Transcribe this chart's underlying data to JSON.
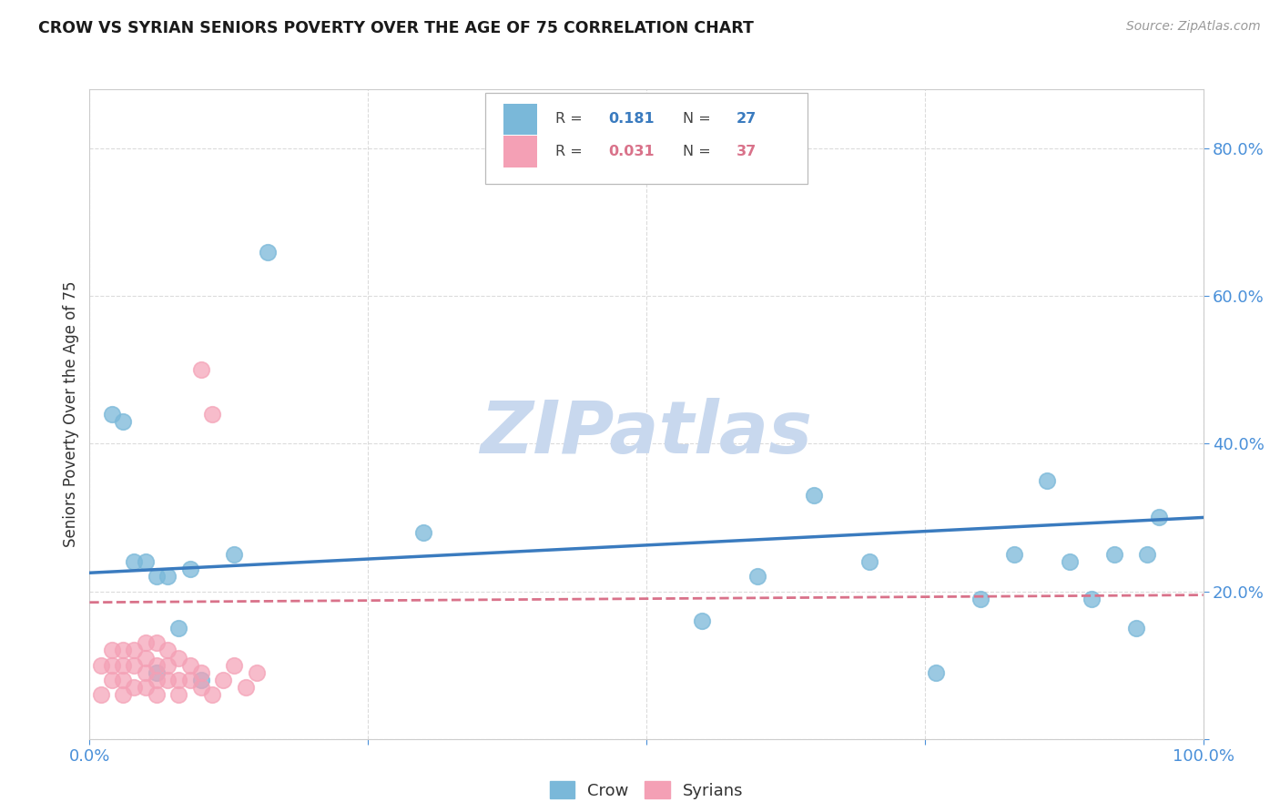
{
  "title": "CROW VS SYRIAN SENIORS POVERTY OVER THE AGE OF 75 CORRELATION CHART",
  "source": "Source: ZipAtlas.com",
  "ylabel": "Seniors Poverty Over the Age of 75",
  "crow_R": 0.181,
  "crow_N": 27,
  "syrian_R": 0.031,
  "syrian_N": 37,
  "crow_color": "#7ab8d9",
  "syrian_color": "#f4a0b5",
  "crow_line_color": "#3a7bbf",
  "syrian_line_color": "#d9728a",
  "bg_color": "#ffffff",
  "watermark_text": "ZIPatlas",
  "watermark_color": "#c8d8ee",
  "xlim": [
    0.0,
    1.0
  ],
  "ylim": [
    0.0,
    0.88
  ],
  "axis_color": "#4a90d9",
  "grid_color": "#d8d8d8",
  "title_color": "#1a1a1a",
  "source_color": "#999999",
  "crow_x": [
    0.02,
    0.03,
    0.04,
    0.05,
    0.06,
    0.06,
    0.07,
    0.08,
    0.09,
    0.1,
    0.13,
    0.16,
    0.3,
    0.55,
    0.6,
    0.65,
    0.7,
    0.76,
    0.8,
    0.83,
    0.86,
    0.88,
    0.9,
    0.92,
    0.94,
    0.95,
    0.96
  ],
  "crow_y": [
    0.44,
    0.43,
    0.24,
    0.24,
    0.22,
    0.09,
    0.22,
    0.15,
    0.23,
    0.08,
    0.25,
    0.66,
    0.28,
    0.16,
    0.22,
    0.33,
    0.24,
    0.09,
    0.19,
    0.25,
    0.35,
    0.24,
    0.19,
    0.25,
    0.15,
    0.25,
    0.3
  ],
  "syrian_x": [
    0.01,
    0.01,
    0.02,
    0.02,
    0.02,
    0.03,
    0.03,
    0.03,
    0.03,
    0.04,
    0.04,
    0.04,
    0.05,
    0.05,
    0.05,
    0.05,
    0.06,
    0.06,
    0.06,
    0.06,
    0.07,
    0.07,
    0.07,
    0.08,
    0.08,
    0.08,
    0.09,
    0.09,
    0.1,
    0.1,
    0.1,
    0.11,
    0.11,
    0.12,
    0.13,
    0.14,
    0.15
  ],
  "syrian_y": [
    0.1,
    0.06,
    0.08,
    0.1,
    0.12,
    0.08,
    0.1,
    0.06,
    0.12,
    0.07,
    0.1,
    0.12,
    0.07,
    0.09,
    0.11,
    0.13,
    0.08,
    0.1,
    0.13,
    0.06,
    0.08,
    0.1,
    0.12,
    0.08,
    0.11,
    0.06,
    0.08,
    0.1,
    0.07,
    0.09,
    0.5,
    0.44,
    0.06,
    0.08,
    0.1,
    0.07,
    0.09
  ],
  "crow_trend_x": [
    0.0,
    1.0
  ],
  "crow_trend_y": [
    0.225,
    0.3
  ],
  "syrian_trend_x": [
    0.0,
    1.0
  ],
  "syrian_trend_y": [
    0.185,
    0.195
  ]
}
